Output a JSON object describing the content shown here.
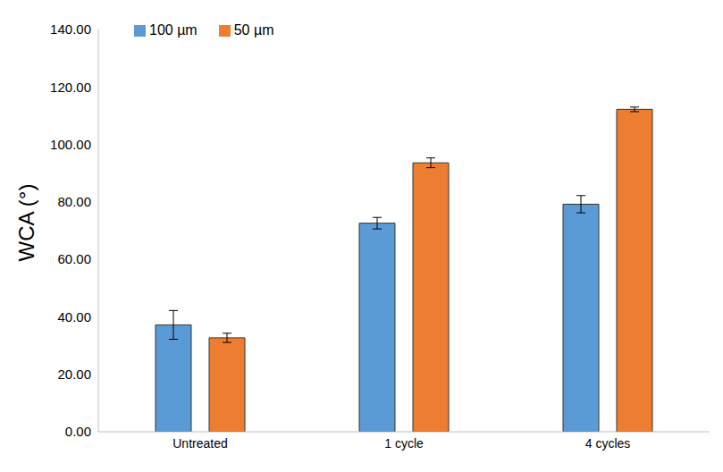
{
  "chart_data": {
    "type": "bar",
    "y_label": "WCA (°)",
    "categories": [
      "Untreated",
      "1 cycle",
      "4 cycles"
    ],
    "series": [
      {
        "name": "100 µm",
        "color": "#5b9bd5",
        "values": [
          37.2,
          72.6,
          79.2
        ],
        "errors": [
          5.0,
          2.0,
          3.0
        ]
      },
      {
        "name": "50 µm",
        "color": "#ed7d31",
        "values": [
          32.7,
          93.6,
          112.2
        ],
        "errors": [
          1.6,
          1.7,
          0.8
        ]
      }
    ],
    "ylim": [
      0,
      140
    ],
    "yticks": [
      {
        "value": 0,
        "label": "0.00"
      },
      {
        "value": 20,
        "label": "20.00"
      },
      {
        "value": 40,
        "label": "40.00"
      },
      {
        "value": 60,
        "label": "60.00"
      },
      {
        "value": 80,
        "label": "80.00"
      },
      {
        "value": 100,
        "label": "100.00"
      },
      {
        "value": 120,
        "label": "120.00"
      },
      {
        "value": 140,
        "label": "140.00"
      }
    ],
    "legend": "top-left",
    "grid": false
  }
}
